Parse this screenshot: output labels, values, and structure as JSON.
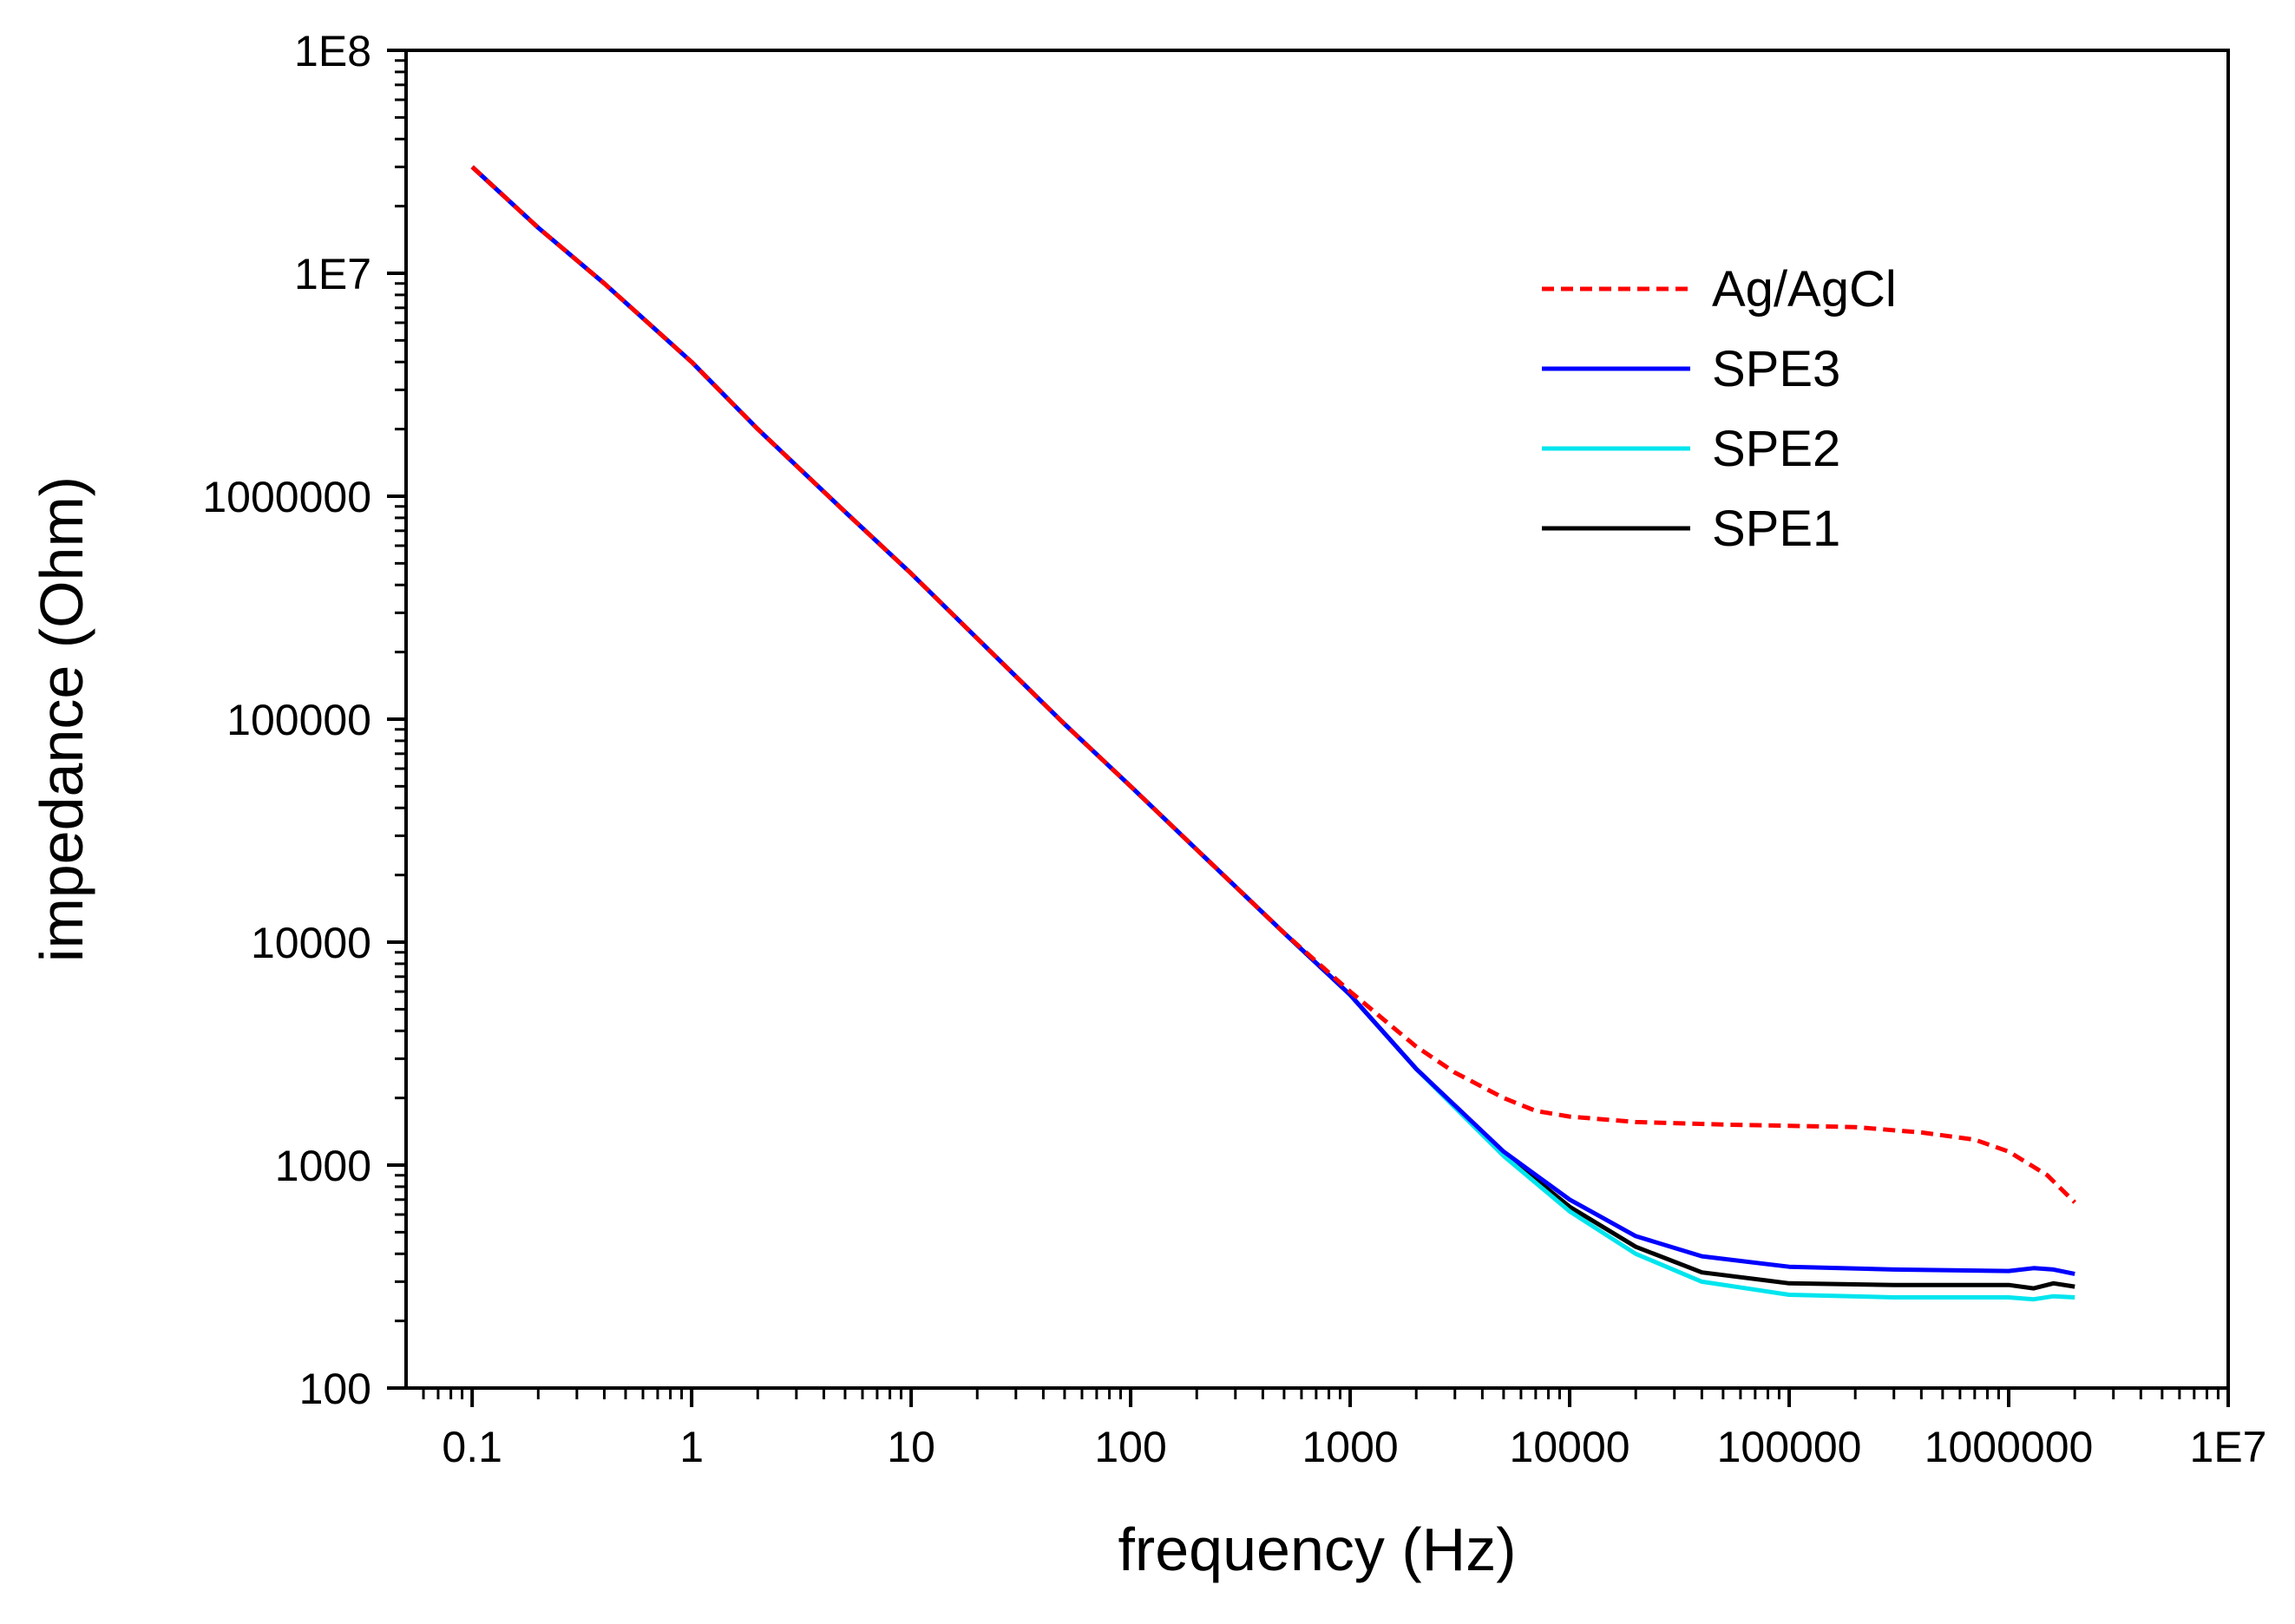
{
  "chart_data": {
    "type": "line",
    "title": "",
    "xlabel": "frequency (Hz)",
    "ylabel": "impedance (Ohm)",
    "x_scale": "log",
    "y_scale": "log",
    "xlim": [
      0.05,
      10000000
    ],
    "ylim": [
      100,
      100000000
    ],
    "grid": false,
    "legend_position": "top-right",
    "x_ticks": [
      {
        "value": 0.1,
        "label": "0.1"
      },
      {
        "value": 1,
        "label": "1"
      },
      {
        "value": 10,
        "label": "10"
      },
      {
        "value": 100,
        "label": "100"
      },
      {
        "value": 1000,
        "label": "1000"
      },
      {
        "value": 10000,
        "label": "10000"
      },
      {
        "value": 100000,
        "label": "100000"
      },
      {
        "value": 1000000,
        "label": "1000000"
      },
      {
        "value": 10000000,
        "label": "1E7"
      }
    ],
    "y_ticks": [
      {
        "value": 100,
        "label": "100"
      },
      {
        "value": 1000,
        "label": "1000"
      },
      {
        "value": 10000,
        "label": "10000"
      },
      {
        "value": 100000,
        "label": "100000"
      },
      {
        "value": 1000000,
        "label": "1000000"
      },
      {
        "value": 10000000,
        "label": "1E7"
      },
      {
        "value": 100000000,
        "label": "1E8"
      }
    ],
    "series": [
      {
        "name": "Ag/AgCl",
        "color": "#ff0000",
        "dashed": true,
        "points": [
          [
            0.1,
            30000000
          ],
          [
            0.2,
            16000000
          ],
          [
            0.4,
            9000000
          ],
          [
            1,
            4000000
          ],
          [
            2,
            2000000
          ],
          [
            5,
            850000
          ],
          [
            10,
            450000
          ],
          [
            20,
            230000
          ],
          [
            50,
            95000
          ],
          [
            100,
            50000
          ],
          [
            200,
            26000
          ],
          [
            500,
            11000
          ],
          [
            1000,
            6000
          ],
          [
            1500,
            4300
          ],
          [
            2000,
            3400
          ],
          [
            3000,
            2600
          ],
          [
            5000,
            2000
          ],
          [
            7000,
            1750
          ],
          [
            10000,
            1650
          ],
          [
            20000,
            1560
          ],
          [
            50000,
            1520
          ],
          [
            100000,
            1500
          ],
          [
            200000,
            1480
          ],
          [
            400000,
            1400
          ],
          [
            700000,
            1300
          ],
          [
            1000000,
            1150
          ],
          [
            1500000,
            900
          ],
          [
            2000000,
            680
          ]
        ]
      },
      {
        "name": "SPE3",
        "color": "#0000ff",
        "dashed": false,
        "points": [
          [
            0.1,
            30000000
          ],
          [
            0.2,
            16000000
          ],
          [
            0.4,
            9000000
          ],
          [
            1,
            4000000
          ],
          [
            2,
            2000000
          ],
          [
            5,
            850000
          ],
          [
            10,
            450000
          ],
          [
            20,
            230000
          ],
          [
            50,
            95000
          ],
          [
            100,
            50000
          ],
          [
            200,
            26000
          ],
          [
            500,
            11000
          ],
          [
            1000,
            5800
          ],
          [
            2000,
            2700
          ],
          [
            5000,
            1150
          ],
          [
            10000,
            700
          ],
          [
            20000,
            480
          ],
          [
            40000,
            390
          ],
          [
            100000,
            350
          ],
          [
            300000,
            340
          ],
          [
            1000000,
            335
          ],
          [
            1300000,
            345
          ],
          [
            1600000,
            340
          ],
          [
            2000000,
            325
          ]
        ]
      },
      {
        "name": "SPE2",
        "color": "#00e5ee",
        "dashed": false,
        "points": [
          [
            0.1,
            30000000
          ],
          [
            0.2,
            16000000
          ],
          [
            0.4,
            9000000
          ],
          [
            1,
            4000000
          ],
          [
            2,
            2000000
          ],
          [
            5,
            850000
          ],
          [
            10,
            450000
          ],
          [
            20,
            230000
          ],
          [
            50,
            95000
          ],
          [
            100,
            50000
          ],
          [
            200,
            26000
          ],
          [
            500,
            11000
          ],
          [
            1000,
            5800
          ],
          [
            2000,
            2700
          ],
          [
            5000,
            1100
          ],
          [
            10000,
            620
          ],
          [
            20000,
            400
          ],
          [
            40000,
            300
          ],
          [
            100000,
            262
          ],
          [
            300000,
            255
          ],
          [
            1000000,
            255
          ],
          [
            1300000,
            250
          ],
          [
            1600000,
            258
          ],
          [
            2000000,
            255
          ]
        ]
      },
      {
        "name": "SPE1",
        "color": "#000000",
        "dashed": false,
        "points": [
          [
            0.1,
            30000000
          ],
          [
            0.2,
            16000000
          ],
          [
            0.4,
            9000000
          ],
          [
            1,
            4000000
          ],
          [
            2,
            2000000
          ],
          [
            5,
            850000
          ],
          [
            10,
            450000
          ],
          [
            20,
            230000
          ],
          [
            50,
            95000
          ],
          [
            100,
            50000
          ],
          [
            200,
            26000
          ],
          [
            500,
            11000
          ],
          [
            1000,
            5800
          ],
          [
            2000,
            2700
          ],
          [
            5000,
            1130
          ],
          [
            10000,
            650
          ],
          [
            20000,
            430
          ],
          [
            40000,
            330
          ],
          [
            100000,
            295
          ],
          [
            300000,
            290
          ],
          [
            1000000,
            290
          ],
          [
            1300000,
            280
          ],
          [
            1600000,
            295
          ],
          [
            2000000,
            285
          ]
        ]
      }
    ]
  }
}
